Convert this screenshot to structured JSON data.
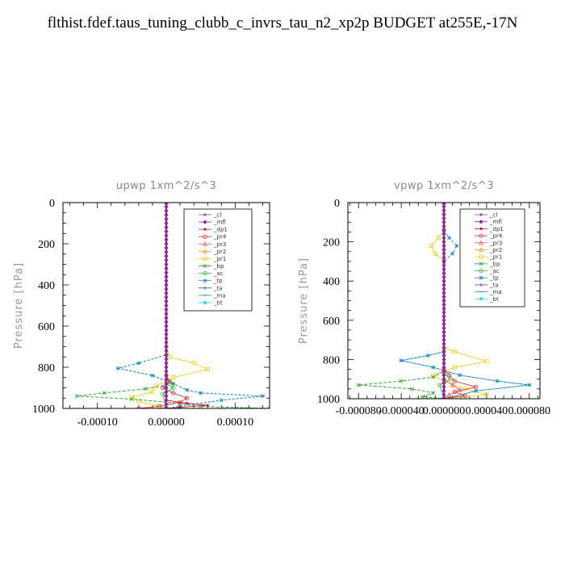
{
  "title": "flthist.fdef.taus_tuning_clubb_c_invrs_tau_n2_xp2p  BUDGET at255E,-17N",
  "series_meta": [
    {
      "name": "_cl",
      "color": "#8e4fa0",
      "marker": "dot"
    },
    {
      "name": "_mfl",
      "color": "#9a1f9a",
      "marker": "diamond"
    },
    {
      "name": "_dp1",
      "color": "#c81436",
      "marker": "dot"
    },
    {
      "name": "_pr4",
      "color": "#e02828",
      "marker": "circle"
    },
    {
      "name": "_pr3",
      "color": "#ff5050",
      "marker": "tri"
    },
    {
      "name": "_pr2",
      "color": "#ff9a20",
      "marker": "tri"
    },
    {
      "name": "_pr1",
      "color": "#f0d020",
      "marker": "square"
    },
    {
      "name": "_bp",
      "color": "#20a020",
      "marker": "x"
    },
    {
      "name": "_ac",
      "color": "#30c030",
      "marker": "circle"
    },
    {
      "name": "_tp",
      "color": "#2080e0",
      "marker": "star"
    },
    {
      "name": "_ta",
      "color": "#4040e0",
      "marker": "plus"
    },
    {
      "name": "_ma",
      "color": "#1090b0",
      "marker": "dash"
    },
    {
      "name": "_bt",
      "color": "#20e0e0",
      "marker": "diamond"
    }
  ],
  "chart_data": [
    {
      "type": "line",
      "title": "upwp   1xm^2/s^3",
      "ylabel": "Pressure [hPa]",
      "xlim": [
        -0.00015,
        0.00015
      ],
      "ylim": [
        1000,
        0
      ],
      "xticks": [
        -0.0001,
        0,
        0.0001
      ],
      "xtick_labels": [
        "-0.00010",
        "0.00000",
        "0.00010"
      ],
      "yticks": [
        0,
        200,
        400,
        600,
        800,
        1000
      ],
      "ytick_labels": [
        "0",
        "200",
        "400",
        "600",
        "800",
        "1000"
      ],
      "legend": "top-right",
      "series": [
        {
          "name": "_pr1",
          "points": [
            [
              0,
              0
            ],
            [
              0,
              700
            ],
            [
              5e-06,
              750
            ],
            [
              4e-05,
              780
            ],
            [
              6e-05,
              810
            ],
            [
              1e-05,
              850
            ],
            [
              -1.5e-05,
              890
            ],
            [
              -2e-05,
              920
            ],
            [
              -5e-05,
              945
            ],
            [
              -4e-05,
              965
            ],
            [
              -1e-05,
              990
            ],
            [
              0,
              1000
            ]
          ]
        },
        {
          "name": "_tp",
          "points": [
            [
              0,
              0
            ],
            [
              0,
              740
            ],
            [
              -4e-05,
              780
            ],
            [
              -7e-05,
              805
            ],
            [
              -2e-05,
              840
            ],
            [
              1e-05,
              880
            ],
            [
              3e-05,
              910
            ],
            [
              5e-05,
              925
            ],
            [
              0.00014,
              940
            ],
            [
              8e-05,
              960
            ],
            [
              2e-05,
              990
            ],
            [
              0,
              1000
            ]
          ]
        },
        {
          "name": "_ma",
          "points": [
            [
              0,
              0
            ],
            [
              0,
              740
            ],
            [
              -4e-05,
              780
            ],
            [
              -7e-05,
              805
            ],
            [
              -2e-05,
              840
            ],
            [
              1e-05,
              880
            ],
            [
              3e-05,
              910
            ],
            [
              5e-05,
              925
            ],
            [
              0.00014,
              940
            ],
            [
              8e-05,
              960
            ],
            [
              2e-05,
              990
            ],
            [
              0,
              1000
            ]
          ]
        },
        {
          "name": "_bp",
          "points": [
            [
              0,
              0
            ],
            [
              0,
              850
            ],
            [
              1e-05,
              880
            ],
            [
              -3e-05,
              905
            ],
            [
              -9e-05,
              925
            ],
            [
              -0.00013,
              940
            ],
            [
              -5e-05,
              955
            ],
            [
              2e-05,
              975
            ],
            [
              5e-05,
              990
            ],
            [
              0.00015,
              1000
            ]
          ]
        },
        {
          "name": "_pr4",
          "points": [
            [
              0,
              0
            ],
            [
              0,
              840
            ],
            [
              5e-06,
              870
            ],
            [
              -5e-06,
              900
            ],
            [
              1e-05,
              925
            ],
            [
              3e-05,
              950
            ],
            [
              2e-05,
              970
            ],
            [
              -1e-05,
              990
            ],
            [
              -4e-05,
              1000
            ]
          ]
        },
        {
          "name": "_dp1",
          "points": [
            [
              0,
              0
            ],
            [
              0,
              960
            ],
            [
              3e-05,
              975
            ],
            [
              6e-05,
              985
            ],
            [
              2e-05,
              995
            ],
            [
              0,
              1000
            ]
          ]
        },
        {
          "name": "_ac",
          "points": [
            [
              0,
              0
            ],
            [
              0,
              880
            ],
            [
              1e-05,
              900
            ],
            [
              -5e-06,
              930
            ],
            [
              0,
              1000
            ]
          ]
        },
        {
          "name": "_bt",
          "points": [
            [
              0,
              0
            ],
            [
              0,
              1000
            ]
          ]
        },
        {
          "name": "_mfl",
          "points": [
            [
              0,
              0
            ],
            [
              0,
              1000
            ]
          ]
        }
      ]
    },
    {
      "type": "line",
      "title": "vpwp   1xm^2/s^3",
      "ylabel": "Pressure [hPa]",
      "xlim": [
        -9e-05,
        9e-05
      ],
      "ylim": [
        1000,
        0
      ],
      "xticks": [
        -8e-05,
        -4e-05,
        0,
        4e-05,
        8e-05
      ],
      "xtick_labels": [
        "-0.000080",
        "-0.000040",
        "0.000000",
        "0.000040",
        "0.000080"
      ],
      "yticks": [
        0,
        200,
        400,
        600,
        800,
        1000
      ],
      "ytick_labels": [
        "0",
        "200",
        "400",
        "600",
        "800",
        "1000"
      ],
      "legend": "top-right",
      "series": [
        {
          "name": "_pr1",
          "points": [
            [
              0,
              0
            ],
            [
              0,
              140
            ],
            [
              -5e-06,
              180
            ],
            [
              -1.2e-05,
              220
            ],
            [
              -8e-06,
              260
            ],
            [
              0,
              300
            ],
            [
              0,
              740
            ],
            [
              1e-05,
              760
            ],
            [
              4e-05,
              810
            ],
            [
              1e-05,
              840
            ],
            [
              -1e-05,
              880
            ],
            [
              0,
              910
            ],
            [
              2e-05,
              950
            ],
            [
              4e-05,
              980
            ],
            [
              0,
              1000
            ]
          ]
        },
        {
          "name": "_tp",
          "points": [
            [
              0,
              0
            ],
            [
              0,
              140
            ],
            [
              5e-06,
              180
            ],
            [
              1.2e-05,
              220
            ],
            [
              8e-06,
              260
            ],
            [
              0,
              300
            ],
            [
              0,
              760
            ],
            [
              -1.5e-05,
              780
            ],
            [
              -4e-05,
              805
            ],
            [
              -1e-05,
              840
            ],
            [
              1.5e-05,
              880
            ],
            [
              5e-05,
              910
            ],
            [
              8e-05,
              930
            ],
            [
              3e-05,
              960
            ],
            [
              0,
              1000
            ]
          ]
        },
        {
          "name": "_ma",
          "points": [
            [
              0,
              0
            ],
            [
              0,
              760
            ],
            [
              -1.5e-05,
              780
            ],
            [
              -4e-05,
              805
            ],
            [
              -1e-05,
              840
            ],
            [
              1.5e-05,
              880
            ],
            [
              5e-05,
              910
            ],
            [
              8e-05,
              930
            ],
            [
              3e-05,
              960
            ],
            [
              0,
              1000
            ]
          ]
        },
        {
          "name": "_bp",
          "points": [
            [
              0,
              0
            ],
            [
              0,
              860
            ],
            [
              -1e-05,
              890
            ],
            [
              -4e-05,
              910
            ],
            [
              -8e-05,
              930
            ],
            [
              -3e-05,
              950
            ],
            [
              -1e-05,
              970
            ],
            [
              -2e-05,
              990
            ],
            [
              0,
              1000
            ]
          ]
        },
        {
          "name": "_pr4",
          "points": [
            [
              0,
              0
            ],
            [
              0,
              850
            ],
            [
              5e-06,
              880
            ],
            [
              1e-05,
              910
            ],
            [
              3e-05,
              940
            ],
            [
              1e-05,
              965
            ],
            [
              2e-05,
              985
            ],
            [
              0,
              1000
            ]
          ]
        },
        {
          "name": "_pr3",
          "points": [
            [
              0,
              0
            ],
            [
              0,
              900
            ],
            [
              8e-06,
              930
            ],
            [
              1.5e-05,
              955
            ],
            [
              5e-06,
              980
            ],
            [
              0,
              1000
            ]
          ]
        },
        {
          "name": "_ac",
          "points": [
            [
              0,
              0
            ],
            [
              0,
              870
            ],
            [
              6e-06,
              900
            ],
            [
              -4e-06,
              930
            ],
            [
              0,
              1000
            ]
          ]
        },
        {
          "name": "_dp1",
          "points": [
            [
              0,
              0
            ],
            [
              0,
              1000
            ]
          ]
        },
        {
          "name": "_bt",
          "points": [
            [
              0,
              0
            ],
            [
              0,
              1000
            ]
          ]
        },
        {
          "name": "_mfl",
          "points": [
            [
              0,
              0
            ],
            [
              0,
              1000
            ]
          ]
        }
      ]
    }
  ]
}
